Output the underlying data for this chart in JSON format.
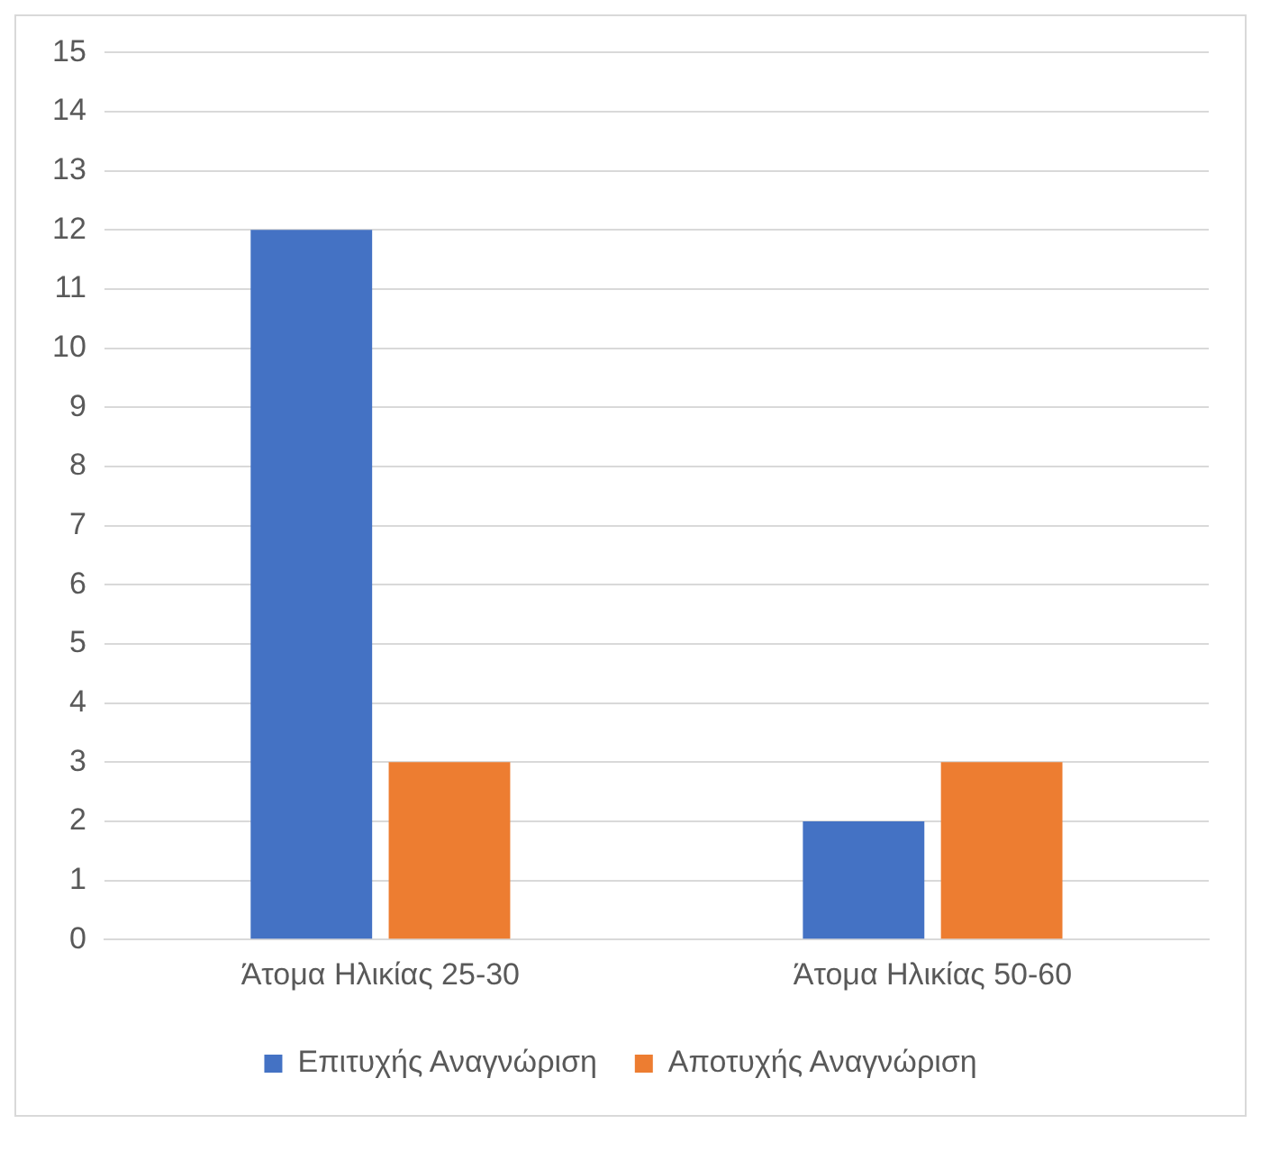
{
  "chart_data": {
    "type": "bar",
    "categories": [
      "Άτομα Ηλικίας 25-30",
      "Άτομα Ηλικίας 50-60"
    ],
    "series": [
      {
        "name": "Επιτυχής Αναγνώριση",
        "color": "#4472c4",
        "values": [
          12,
          2
        ]
      },
      {
        "name": "Αποτυχής Αναγνώριση",
        "color": "#ed7d31",
        "values": [
          3,
          3
        ]
      }
    ],
    "ylim": [
      0,
      15
    ],
    "yticks": [
      0,
      1,
      2,
      3,
      4,
      5,
      6,
      7,
      8,
      9,
      10,
      11,
      12,
      13,
      14,
      15
    ],
    "grid": "y",
    "legend": "bottom"
  }
}
